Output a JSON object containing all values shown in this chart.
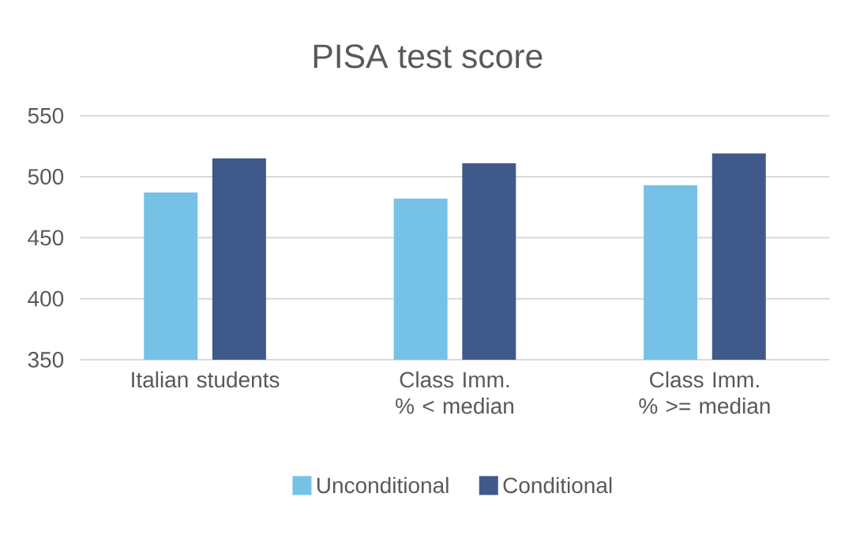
{
  "chart_data": {
    "type": "bar",
    "title": "PISA test score",
    "categories": [
      "Italian students",
      "Class Imm. % < median",
      "Class Imm. % >= median"
    ],
    "series": [
      {
        "name": "Unconditional",
        "color": "#75c2e6",
        "values": [
          487,
          482,
          493
        ]
      },
      {
        "name": "Conditional",
        "color": "#3f5a8a",
        "values": [
          515,
          511,
          519
        ]
      }
    ],
    "ylim": [
      350,
      550
    ],
    "yticks": [
      350,
      400,
      450,
      500,
      550
    ],
    "grid": "y",
    "legend": "bottom"
  }
}
